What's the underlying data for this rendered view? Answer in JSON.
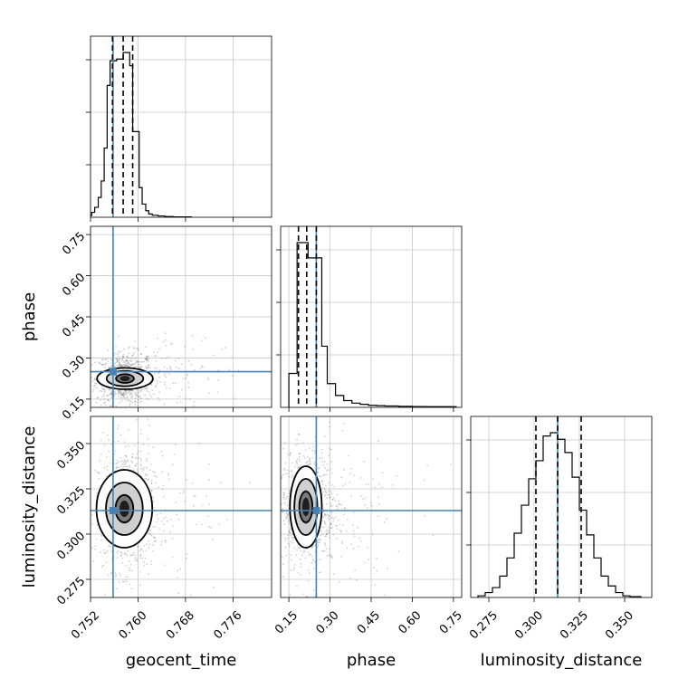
{
  "chart_data": {
    "type": "corner",
    "truth_color": "#4682b4",
    "grid": true,
    "parameters": [
      {
        "name": "geocent_time",
        "label": "geocent_time",
        "range": [
          0.752,
          0.7825
        ],
        "ticks": [
          "0.752",
          "0.760",
          "0.768",
          "0.776"
        ],
        "truth": 0.7558,
        "quantiles": [
          0.7557,
          0.7575,
          0.7591
        ],
        "hist": {
          "edges": [
            0.7505,
            0.7522,
            0.7527,
            0.7533,
            0.7538,
            0.7543,
            0.7548,
            0.7553,
            0.7559,
            0.7564,
            0.7569,
            0.7575,
            0.758,
            0.7586,
            0.7591,
            0.7596,
            0.7602,
            0.7607,
            0.7613,
            0.7618,
            0.7624,
            0.7634,
            0.7645,
            0.766,
            0.769
          ],
          "counts": [
            0.01,
            0.03,
            0.06,
            0.12,
            0.22,
            0.42,
            0.8,
            0.95,
            0.95,
            0.96,
            0.96,
            1.0,
            1.0,
            0.92,
            0.52,
            0.52,
            0.18,
            0.08,
            0.04,
            0.02,
            0.012,
            0.008,
            0.004,
            0.002
          ]
        }
      },
      {
        "name": "phase",
        "label": "phase",
        "range": [
          0.12,
          0.78
        ],
        "ticks": [
          "0.15",
          "0.30",
          "0.45",
          "0.60",
          "0.75"
        ],
        "truth": 0.25,
        "quantiles": [
          0.185,
          0.215,
          0.25
        ],
        "hist": {
          "edges": [
            0.15,
            0.18,
            0.2,
            0.22,
            0.25,
            0.27,
            0.29,
            0.32,
            0.35,
            0.38,
            0.41,
            0.44,
            0.47,
            0.5,
            0.55,
            0.6,
            0.65,
            0.7,
            0.76
          ],
          "counts": [
            0.2,
            0.97,
            0.97,
            0.88,
            0.88,
            0.36,
            0.14,
            0.07,
            0.04,
            0.025,
            0.018,
            0.012,
            0.01,
            0.008,
            0.006,
            0.005,
            0.004,
            0.004
          ]
        }
      },
      {
        "name": "luminosity_distance",
        "label": "luminosity_distance",
        "range": [
          0.265,
          0.365
        ],
        "ticks": [
          "0.275",
          "0.300",
          "0.325",
          "0.350"
        ],
        "truth": 0.313,
        "quantiles": [
          0.301,
          0.313,
          0.326
        ],
        "hist": {
          "edges": [
            0.269,
            0.273,
            0.277,
            0.281,
            0.285,
            0.289,
            0.293,
            0.297,
            0.301,
            0.305,
            0.309,
            0.313,
            0.317,
            0.321,
            0.325,
            0.329,
            0.333,
            0.337,
            0.341,
            0.345,
            0.349,
            0.353,
            0.359
          ],
          "counts": [
            0.01,
            0.03,
            0.06,
            0.13,
            0.24,
            0.39,
            0.56,
            0.72,
            0.83,
            0.98,
            1.0,
            0.96,
            0.88,
            0.73,
            0.53,
            0.38,
            0.24,
            0.13,
            0.07,
            0.03,
            0.01,
            0.005
          ]
        }
      }
    ],
    "pairs": [
      {
        "x": "geocent_time",
        "y": "phase",
        "mean": [
          0.7578,
          0.225
        ],
        "sd": [
          0.0018,
          0.035
        ],
        "contours": [
          [
            0.0015,
            0.016
          ],
          [
            0.0031,
            0.028
          ],
          [
            0.0047,
            0.039
          ]
        ]
      },
      {
        "x": "geocent_time",
        "y": "luminosity_distance",
        "mean": [
          0.7577,
          0.314
        ],
        "sd": [
          0.0018,
          0.0125
        ],
        "contours": [
          [
            0.0015,
            0.0075
          ],
          [
            0.0031,
            0.0145
          ],
          [
            0.0047,
            0.0215
          ]
        ]
      },
      {
        "x": "phase",
        "y": "luminosity_distance",
        "mean": [
          0.212,
          0.315
        ],
        "sd": [
          0.04,
          0.012
        ],
        "contours": [
          [
            0.024,
            0.0085
          ],
          [
            0.042,
            0.0155
          ],
          [
            0.058,
            0.0225
          ]
        ]
      }
    ]
  }
}
